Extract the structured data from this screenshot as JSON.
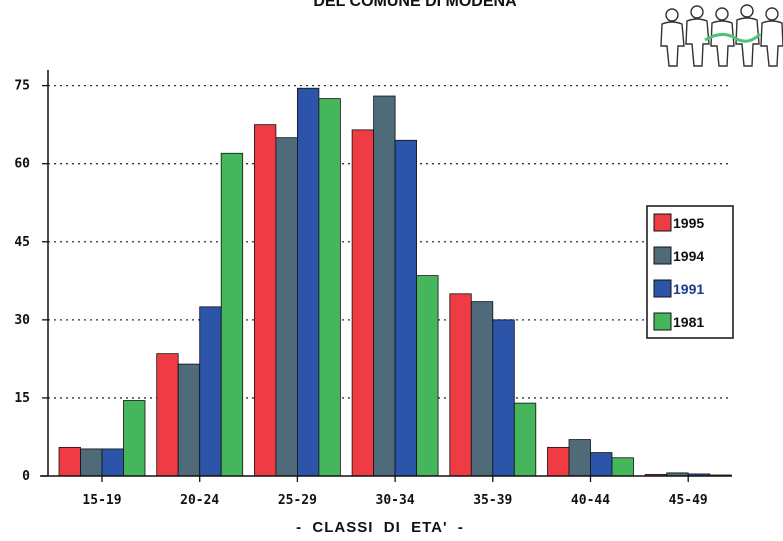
{
  "chart_data": {
    "type": "bar",
    "title": "DEL COMUNE DI MODENA",
    "xlabel": "-  CLASSI  DI  ETA'  -",
    "ylabel": "",
    "categories": [
      "15-19",
      "20-24",
      "25-29",
      "30-34",
      "35-39",
      "40-44",
      "45-49"
    ],
    "ylim": [
      0,
      78
    ],
    "yticks": [
      "0",
      "15",
      "30",
      "45",
      "60",
      "75"
    ],
    "grid": "dotted horizontal",
    "legend_position": "right",
    "series": [
      {
        "name": "1995",
        "color": "#ef3b43",
        "label_color": "#111111",
        "values": [
          5.5,
          23.5,
          67.5,
          66.5,
          35,
          5.5,
          0.3
        ]
      },
      {
        "name": "1994",
        "color": "#4f6a78",
        "label_color": "#111111",
        "values": [
          5.2,
          21.5,
          65,
          73,
          33.5,
          7,
          0.6
        ]
      },
      {
        "name": "1991",
        "color": "#2c54a8",
        "label_color": "#1b3a8a",
        "values": [
          5.2,
          32.5,
          74.5,
          64.5,
          30,
          4.5,
          0.4
        ]
      },
      {
        "name": "1981",
        "color": "#45b65c",
        "label_color": "#111111",
        "values": [
          14.5,
          62,
          72.5,
          38.5,
          14,
          3.5,
          0.2
        ]
      }
    ],
    "decorative_icon": "people-crowd-icon"
  }
}
